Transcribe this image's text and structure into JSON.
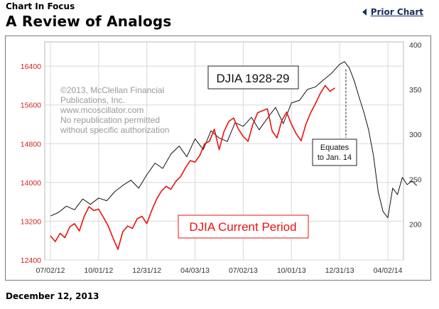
{
  "header": {
    "kicker": "Chart In Focus",
    "title": "A Review of Analogs",
    "prior_link": "Prior Chart",
    "date": "December 12, 2013"
  },
  "colors": {
    "current": "#e8130f",
    "historical": "#111111",
    "grid": "#d8d8d8",
    "left_axis": "#d42020"
  },
  "chart_data": {
    "type": "line",
    "title": "A Review of Analogs",
    "x_labels": [
      "07/02/12",
      "10/01/12",
      "12/31/12",
      "04/03/13",
      "07/02/13",
      "10/01/13",
      "12/31/13",
      "04/02/14"
    ],
    "left_axis": {
      "ticks": [
        12400,
        13200,
        14000,
        14800,
        15600,
        16400
      ],
      "range": [
        12400,
        16900
      ]
    },
    "right_axis": {
      "ticks": [
        200,
        250,
        300,
        350,
        400
      ],
      "range": [
        160,
        403
      ]
    },
    "copyright_lines": [
      "©2013, McClellan Financial",
      "Publications, Inc.",
      "www.mcoscillator.com",
      "No republication permitted",
      "without specific authorization"
    ],
    "annotation": {
      "lines": [
        "Equates",
        "to Jan. 14"
      ],
      "x_index": 6.13
    },
    "series": [
      {
        "name": "DJIA 1928-29",
        "axis": "right",
        "color": "#111111",
        "x": [
          0,
          0.17,
          0.33,
          0.5,
          0.67,
          0.83,
          1.0,
          1.17,
          1.33,
          1.5,
          1.67,
          1.83,
          2.0,
          2.17,
          2.33,
          2.5,
          2.67,
          2.83,
          3.0,
          3.17,
          3.33,
          3.5,
          3.67,
          3.83,
          4.0,
          4.17,
          4.33,
          4.5,
          4.67,
          4.83,
          5.0,
          5.17,
          5.33,
          5.5,
          5.67,
          5.83,
          6.0,
          6.1,
          6.2,
          6.3,
          6.4,
          6.5,
          6.6,
          6.7,
          6.8,
          6.9,
          7.0,
          7.1,
          7.2,
          7.3,
          7.4,
          7.5,
          7.6
        ],
        "values": [
          209,
          213,
          220,
          216,
          228,
          222,
          229,
          226,
          236,
          243,
          249,
          240,
          255,
          268,
          262,
          278,
          287,
          275,
          295,
          283,
          304,
          296,
          292,
          313,
          309,
          319,
          305,
          318,
          330,
          312,
          335,
          338,
          350,
          353,
          361,
          368,
          378,
          381,
          374,
          360,
          342,
          325,
          305,
          277,
          236,
          214,
          207,
          240,
          233,
          252,
          244,
          248,
          243
        ]
      },
      {
        "name": "DJIA Current Period",
        "axis": "left",
        "color": "#e8130f",
        "x": [
          0,
          0.1,
          0.2,
          0.3,
          0.4,
          0.5,
          0.6,
          0.7,
          0.8,
          0.9,
          1.0,
          1.1,
          1.2,
          1.3,
          1.4,
          1.5,
          1.6,
          1.7,
          1.8,
          1.9,
          2.0,
          2.1,
          2.2,
          2.3,
          2.4,
          2.5,
          2.6,
          2.7,
          2.8,
          2.9,
          3.0,
          3.1,
          3.2,
          3.3,
          3.4,
          3.5,
          3.6,
          3.7,
          3.8,
          3.9,
          4.0,
          4.1,
          4.2,
          4.3,
          4.4,
          4.5,
          4.6,
          4.7,
          4.8,
          4.9,
          5.0,
          5.1,
          5.2,
          5.3,
          5.4,
          5.5,
          5.6,
          5.7,
          5.8,
          5.9
        ],
        "values": [
          12900,
          12780,
          12950,
          12860,
          13080,
          13150,
          13000,
          13300,
          13500,
          13420,
          13450,
          13280,
          13100,
          12850,
          12620,
          12980,
          13100,
          13050,
          13250,
          13300,
          13150,
          13420,
          13650,
          13820,
          13920,
          13860,
          14020,
          14120,
          14300,
          14450,
          14420,
          14560,
          14800,
          14850,
          15100,
          14680,
          15050,
          15260,
          15330,
          15100,
          14950,
          14850,
          15200,
          15440,
          15480,
          15520,
          15060,
          14920,
          15280,
          15450,
          15200,
          15000,
          14860,
          15200,
          15440,
          15630,
          15840,
          16000,
          15880,
          15950
        ]
      }
    ],
    "series_labels": {
      "historical_box": "DJIA 1928-29",
      "current_box": "DJIA Current Period"
    }
  }
}
